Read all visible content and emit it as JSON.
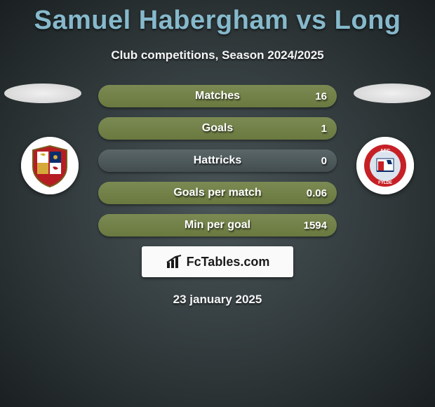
{
  "title": "Samuel Habergham vs Long",
  "title_color": "#86b9cc",
  "subtitle": "Club competitions, Season 2024/2025",
  "date": "23 january 2025",
  "brand": "FcTables.com",
  "background": {
    "gradient_inner": "#4a5558",
    "gradient_mid": "#2e3638",
    "gradient_outer": "#1a2022"
  },
  "ellipse_color": "#e8e8e8",
  "crest_left": {
    "shield_fill": "#b51d22",
    "shield_stroke": "#7a5a1e",
    "q1": "#ffffff",
    "q2": "#0b2e6b",
    "q3": "#d4a93a",
    "q4": "#ffffff",
    "lion": "#d4a93a"
  },
  "crest_right": {
    "ring": "#c62026",
    "inner": "#dbe4ee",
    "text": "#c62026",
    "accent": "#0b2e6b"
  },
  "row_track": "#4e595b",
  "row_fill": "#7b8a53",
  "rows": [
    {
      "label": "Matches",
      "val_right": "16",
      "fill_pct": 100
    },
    {
      "label": "Goals",
      "val_right": "1",
      "fill_pct": 100
    },
    {
      "label": "Hattricks",
      "val_right": "0",
      "fill_pct": 0
    },
    {
      "label": "Goals per match",
      "val_right": "0.06",
      "fill_pct": 100
    },
    {
      "label": "Min per goal",
      "val_right": "1594",
      "fill_pct": 100
    }
  ],
  "text_color": "#ffffff",
  "label_fontsize": 16,
  "value_fontsize": 15
}
